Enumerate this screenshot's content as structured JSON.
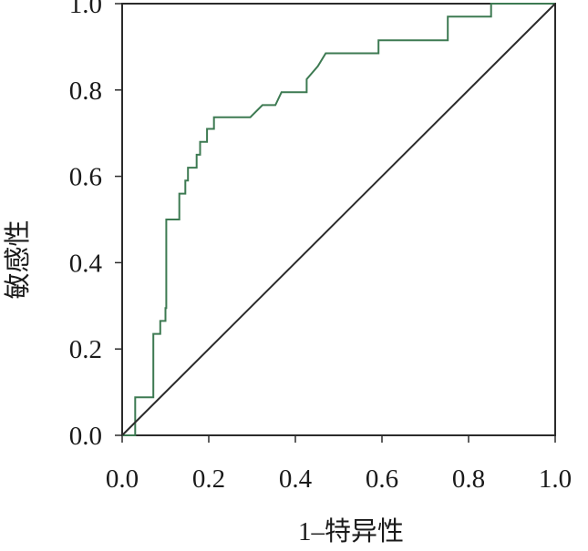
{
  "chart_data": {
    "type": "line",
    "xlabel": "1–特异性",
    "ylabel": "敏感性",
    "xlim": [
      0,
      1
    ],
    "ylim": [
      0,
      1
    ],
    "x_ticks": [
      "0.0",
      "0.2",
      "0.4",
      "0.6",
      "0.8",
      "1.0"
    ],
    "y_ticks": [
      "0.0",
      "0.2",
      "0.4",
      "0.6",
      "0.8",
      "1.0"
    ],
    "grid": false,
    "legend": "none",
    "series": [
      {
        "style": "step",
        "color": "#3d7a52",
        "points": [
          [
            0.0,
            0.0
          ],
          [
            0.03,
            0.0
          ],
          [
            0.03,
            0.088
          ],
          [
            0.072,
            0.088
          ],
          [
            0.072,
            0.235
          ],
          [
            0.088,
            0.235
          ],
          [
            0.088,
            0.265
          ],
          [
            0.1,
            0.265
          ],
          [
            0.1,
            0.295
          ],
          [
            0.102,
            0.295
          ],
          [
            0.102,
            0.5
          ],
          [
            0.132,
            0.5
          ],
          [
            0.132,
            0.56
          ],
          [
            0.146,
            0.56
          ],
          [
            0.146,
            0.59
          ],
          [
            0.152,
            0.59
          ],
          [
            0.152,
            0.62
          ],
          [
            0.172,
            0.62
          ],
          [
            0.172,
            0.65
          ],
          [
            0.18,
            0.65
          ],
          [
            0.18,
            0.68
          ],
          [
            0.196,
            0.68
          ],
          [
            0.196,
            0.71
          ],
          [
            0.212,
            0.71
          ],
          [
            0.212,
            0.737
          ],
          [
            0.296,
            0.737
          ],
          [
            0.324,
            0.765
          ],
          [
            0.354,
            0.765
          ],
          [
            0.368,
            0.795
          ],
          [
            0.426,
            0.795
          ],
          [
            0.426,
            0.825
          ],
          [
            0.452,
            0.855
          ],
          [
            0.47,
            0.885
          ],
          [
            0.592,
            0.885
          ],
          [
            0.592,
            0.915
          ],
          [
            0.752,
            0.915
          ],
          [
            0.752,
            0.97
          ],
          [
            0.852,
            0.97
          ],
          [
            0.852,
            1.0
          ],
          [
            1.0,
            1.0
          ]
        ]
      },
      {
        "style": "line",
        "color": "#2b2b2b",
        "points": [
          [
            0,
            0
          ],
          [
            1,
            1
          ]
        ]
      }
    ]
  }
}
